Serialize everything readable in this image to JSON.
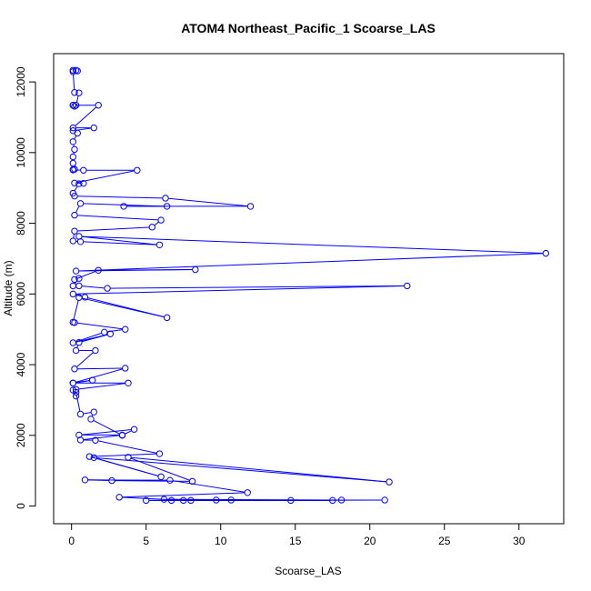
{
  "chart_data": {
    "type": "line",
    "title": "ATOM4 Northeast_Pacific_1 Scoarse_LAS",
    "xlabel": "Scoarse_LAS",
    "ylabel": "Altitude (m)",
    "xlim": [
      -1.2,
      33
    ],
    "ylim": [
      -500,
      12800
    ],
    "xticks": [
      0,
      5,
      10,
      15,
      20,
      25,
      30
    ],
    "yticks": [
      0,
      2000,
      4000,
      6000,
      8000,
      10000,
      12000
    ],
    "grid": false,
    "legend": "none",
    "series_color": "#0000ff",
    "series": [
      {
        "x": [
          0.1,
          0.3,
          0.4,
          0.1,
          0.2,
          0.5,
          0.3,
          0.1,
          0.2,
          0.1,
          1.8,
          0.1,
          1.5,
          0.1,
          0.4,
          0.1,
          0.2,
          0.1,
          0.1,
          0.2,
          0.1,
          0.1,
          0.8,
          4.4,
          0.2,
          0.8,
          0.5,
          0.1,
          0.2,
          6.3,
          12.0,
          3.5,
          6.4,
          0.6,
          0.2,
          6.0,
          5.4,
          0.2,
          0.1,
          0.6,
          5.9,
          0.5,
          31.8,
          0.3,
          8.3,
          1.8,
          0.2,
          0.5,
          0.1,
          0.5,
          2.4,
          22.5,
          0.1,
          0.9,
          6.4,
          0.5,
          0.1,
          0.2,
          3.6,
          2.2,
          0.1,
          2.6,
          0.5,
          0.3,
          1.6,
          0.2,
          3.6,
          0.1,
          1.4,
          0.1,
          3.8,
          0.3,
          0.1,
          0.3,
          0.3,
          0.6,
          1.5,
          1.3,
          3.4,
          4.2,
          0.5,
          3.4,
          0.6,
          1.6,
          5.9,
          1.2,
          6.0,
          1.5,
          21.3,
          3.8,
          8.1,
          2.7,
          0.9,
          6.6,
          11.8,
          3.2,
          7.5,
          5.0,
          17.5,
          6.7,
          21.0,
          14.7,
          8.0,
          10.7,
          6.2,
          18.1,
          9.7
        ],
        "y": [
          12330,
          12330,
          12310,
          12290,
          11700,
          11690,
          11340,
          11340,
          11310,
          11340,
          11340,
          10700,
          10700,
          10620,
          10550,
          10310,
          10090,
          9880,
          9700,
          9530,
          9520,
          9510,
          9500,
          9500,
          9140,
          9130,
          9120,
          8850,
          8770,
          8710,
          8480,
          8480,
          8480,
          8560,
          8230,
          8090,
          7890,
          7780,
          7500,
          7480,
          7390,
          7630,
          7150,
          6650,
          6690,
          6670,
          6410,
          6440,
          6230,
          6230,
          6160,
          6230,
          6000,
          5910,
          5330,
          5900,
          5200,
          5190,
          5000,
          4920,
          4620,
          4870,
          4630,
          4400,
          4400,
          3880,
          3900,
          3480,
          3560,
          3480,
          3480,
          3300,
          3280,
          3110,
          3220,
          2600,
          2660,
          2460,
          2000,
          2170,
          2010,
          2010,
          1870,
          1860,
          1480,
          1400,
          830,
          1370,
          680,
          1380,
          700,
          720,
          740,
          730,
          380,
          250,
          160,
          160,
          160,
          160,
          170,
          160,
          160,
          170,
          190,
          170,
          170
        ]
      }
    ]
  }
}
